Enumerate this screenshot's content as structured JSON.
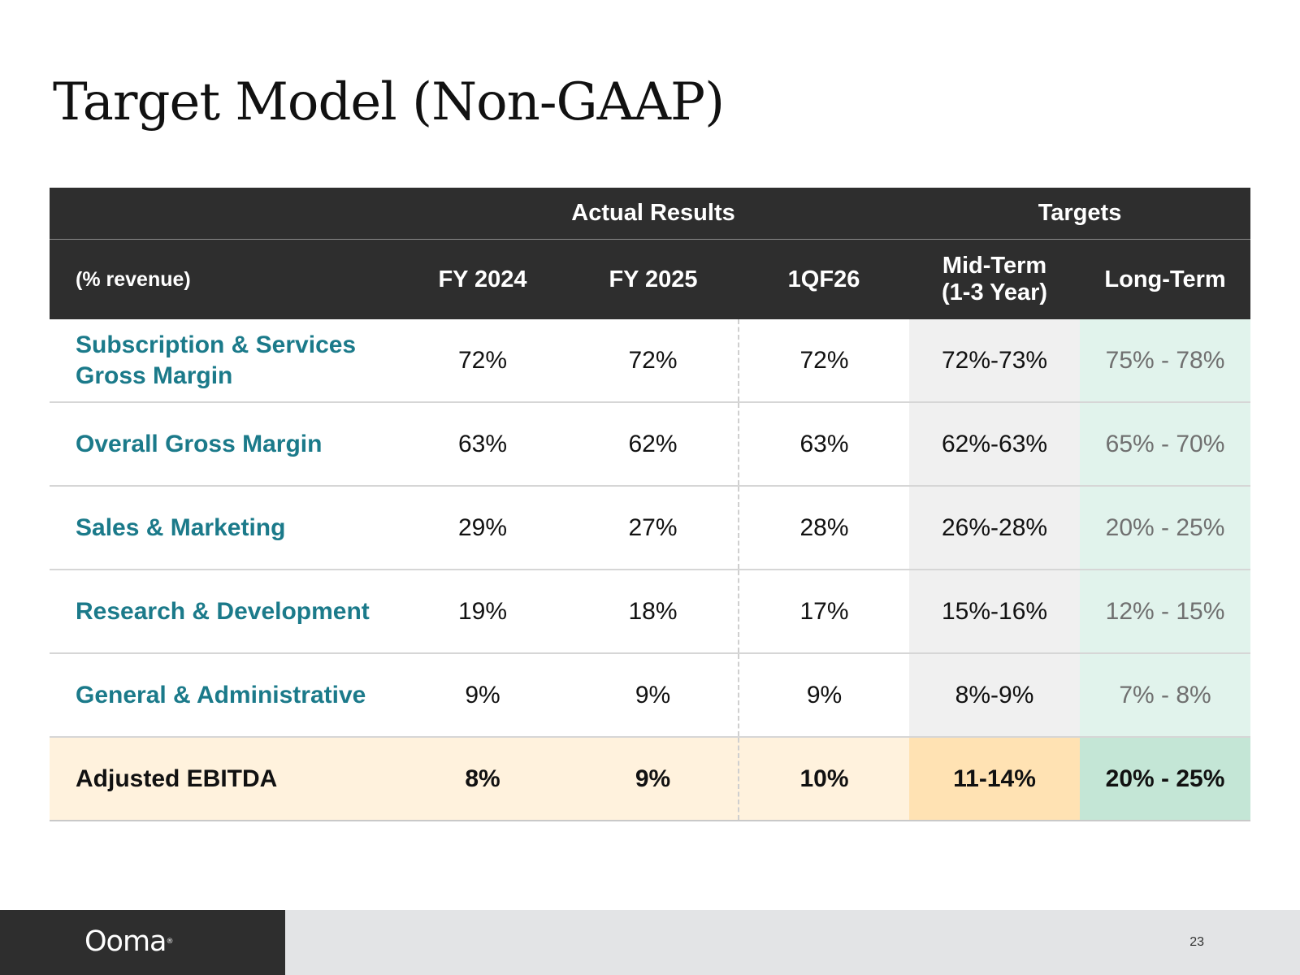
{
  "slide": {
    "title": "Target Model (Non-GAAP)",
    "page_number": "23"
  },
  "table": {
    "group_headers": {
      "actual": "Actual Results",
      "targets": "Targets"
    },
    "columns": {
      "unit": "(% revenue)",
      "fy2024": "FY 2024",
      "fy2025": "FY 2025",
      "q1f26": "1QF26",
      "mid_line1": "Mid-Term",
      "mid_line2": "(1-3 Year)",
      "long": "Long-Term"
    },
    "rows": [
      {
        "label_line1": "Subscription & Services",
        "label_line2": "Gross Margin",
        "fy2024": "72%",
        "fy2025": "72%",
        "q1f26": "72%",
        "mid": "72%-73%",
        "long": "75% - 78%"
      },
      {
        "label_line1": "Overall Gross Margin",
        "label_line2": "",
        "fy2024": "63%",
        "fy2025": "62%",
        "q1f26": "63%",
        "mid": "62%-63%",
        "long": "65% - 70%"
      },
      {
        "label_line1": "Sales & Marketing",
        "label_line2": "",
        "fy2024": "29%",
        "fy2025": "27%",
        "q1f26": "28%",
        "mid": "26%-28%",
        "long": "20% - 25%"
      },
      {
        "label_line1": "Research & Development",
        "label_line2": "",
        "fy2024": "19%",
        "fy2025": "18%",
        "q1f26": "17%",
        "mid": "15%-16%",
        "long": "12% - 15%"
      },
      {
        "label_line1": "General & Administrative",
        "label_line2": "",
        "fy2024": "9%",
        "fy2025": "9%",
        "q1f26": "9%",
        "mid": "8%-9%",
        "long": "7% - 8%"
      }
    ],
    "total_row": {
      "label": "Adjusted EBITDA",
      "fy2024": "8%",
      "fy2025": "9%",
      "q1f26": "10%",
      "mid": "11-14%",
      "long": "20% - 25%"
    }
  },
  "footer": {
    "logo_text": "Ooma",
    "logo_mark": "®"
  },
  "colors": {
    "header_bg": "#2e2e2e",
    "label_teal": "#1b7a8a",
    "mid_term_bg": "#f0f0f0",
    "long_term_bg": "#e1f3ec",
    "ebitda_bg": "#fff2dd",
    "ebitda_mid_bg": "#ffe2b3",
    "ebitda_long_bg": "#c4e6d6",
    "footer_bg": "#e3e4e6"
  }
}
